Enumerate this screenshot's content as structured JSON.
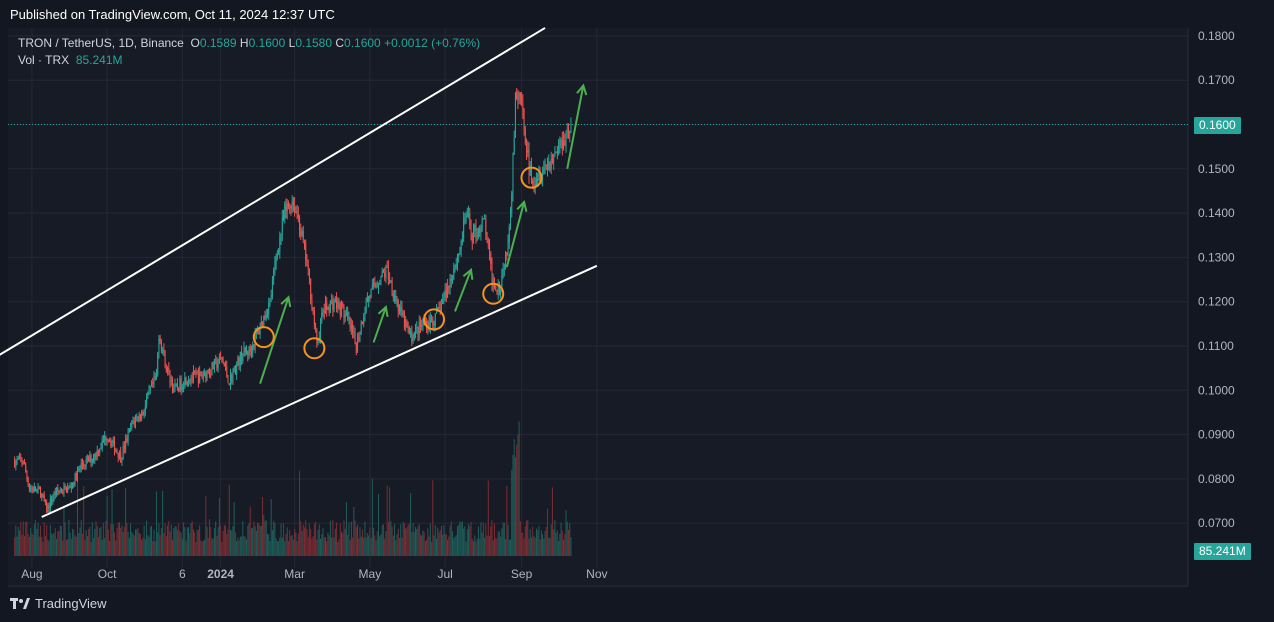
{
  "header": {
    "published": "Published on TradingView.com, Oct 11, 2024 12:37 UTC"
  },
  "legend": {
    "symbol": "TRON / TetherUS, 1D, Binance",
    "o_label": "O",
    "o_value": "0.1589",
    "h_label": "H",
    "h_value": "0.1600",
    "l_label": "L",
    "l_value": "0.1580",
    "c_label": "C",
    "c_value": "0.1600",
    "change": "+0.0012 (+0.76%)",
    "vol_label": "Vol · TRX",
    "vol_value": "85.241M"
  },
  "footer": {
    "brand": "TradingView"
  },
  "colors": {
    "up": "#26a69a",
    "down": "#ef5350",
    "channel": "#ffffff",
    "arrow": "#4caf50",
    "circle": "#f7931a",
    "bg": "#171b26"
  },
  "chart_data": {
    "type": "candlestick",
    "symbol": "TRX/USDT",
    "interval": "1D",
    "y_ticks": [
      "0.1800",
      "0.1700",
      "0.1600",
      "0.1500",
      "0.1400",
      "0.1300",
      "0.1200",
      "0.1100",
      "0.1000",
      "0.0900",
      "0.0800",
      "0.0700"
    ],
    "ylim": [
      0.0672,
      0.1825
    ],
    "x_ticks": [
      "Aug",
      "Oct",
      "6",
      "2024",
      "Mar",
      "May",
      "Jul",
      "Sep",
      "Nov"
    ],
    "last_price": "0.1600",
    "last_volume": "85.241M",
    "path": [
      [
        "2023-07-25",
        0.084
      ],
      [
        "2023-07-30",
        0.078
      ],
      [
        "2023-08-08",
        0.077
      ],
      [
        "2023-08-13",
        0.073
      ],
      [
        "2023-08-20",
        0.077
      ],
      [
        "2023-09-01",
        0.078
      ],
      [
        "2023-09-10",
        0.083
      ],
      [
        "2023-09-20",
        0.085
      ],
      [
        "2023-10-01",
        0.09
      ],
      [
        "2023-10-05",
        0.088
      ],
      [
        "2023-10-12",
        0.085
      ],
      [
        "2023-10-22",
        0.093
      ],
      [
        "2023-10-30",
        0.095
      ],
      [
        "2023-11-05",
        0.1
      ],
      [
        "2023-11-10",
        0.103
      ],
      [
        "2023-11-12",
        0.113
      ],
      [
        "2023-11-18",
        0.105
      ],
      [
        "2023-11-25",
        0.1
      ],
      [
        "2023-12-05",
        0.103
      ],
      [
        "2023-12-15",
        0.103
      ],
      [
        "2023-12-25",
        0.105
      ],
      [
        "2024-01-02",
        0.107
      ],
      [
        "2024-01-08",
        0.102
      ],
      [
        "2024-01-18",
        0.108
      ],
      [
        "2024-01-25",
        0.109
      ],
      [
        "2024-02-03",
        0.115
      ],
      [
        "2024-02-10",
        0.12
      ],
      [
        "2024-02-15",
        0.13
      ],
      [
        "2024-02-22",
        0.14
      ],
      [
        "2024-02-28",
        0.143
      ],
      [
        "2024-03-04",
        0.139
      ],
      [
        "2024-03-10",
        0.13
      ],
      [
        "2024-03-15",
        0.12
      ],
      [
        "2024-03-19",
        0.11
      ],
      [
        "2024-03-24",
        0.118
      ],
      [
        "2024-04-02",
        0.12
      ],
      [
        "2024-04-09",
        0.118
      ],
      [
        "2024-04-14",
        0.115
      ],
      [
        "2024-04-20",
        0.11
      ],
      [
        "2024-04-28",
        0.12
      ],
      [
        "2024-05-08",
        0.125
      ],
      [
        "2024-05-15",
        0.127
      ],
      [
        "2024-05-25",
        0.118
      ],
      [
        "2024-06-03",
        0.112
      ],
      [
        "2024-06-13",
        0.115
      ],
      [
        "2024-06-23",
        0.116
      ],
      [
        "2024-07-03",
        0.123
      ],
      [
        "2024-07-13",
        0.132
      ],
      [
        "2024-07-18",
        0.14
      ],
      [
        "2024-07-23",
        0.135
      ],
      [
        "2024-08-02",
        0.138
      ],
      [
        "2024-08-08",
        0.125
      ],
      [
        "2024-08-14",
        0.123
      ],
      [
        "2024-08-20",
        0.132
      ],
      [
        "2024-08-24",
        0.145
      ],
      [
        "2024-08-27",
        0.165
      ],
      [
        "2024-08-31",
        0.166
      ],
      [
        "2024-09-03",
        0.16
      ],
      [
        "2024-09-07",
        0.15
      ],
      [
        "2024-09-11",
        0.148
      ],
      [
        "2024-09-18",
        0.15
      ],
      [
        "2024-09-25",
        0.152
      ],
      [
        "2024-10-03",
        0.156
      ],
      [
        "2024-10-11",
        0.16
      ]
    ],
    "volume_range": [
      25,
      180
    ],
    "channel": {
      "upper": [
        [
          "2023-07-01",
          0.1072
        ],
        [
          "2024-09-20",
          0.1818
        ]
      ],
      "lower": [
        [
          "2023-08-09",
          0.0714
        ],
        [
          "2024-11-01",
          0.1281
        ]
      ]
    },
    "arrows": [
      [
        [
          "2024-02-02",
          0.1015
        ],
        [
          "2024-02-25",
          0.121
        ]
      ],
      [
        [
          "2024-05-04",
          0.1108
        ],
        [
          "2024-05-14",
          0.1188
        ]
      ],
      [
        [
          "2024-07-09",
          0.1178
        ],
        [
          "2024-07-22",
          0.1272
        ]
      ],
      [
        [
          "2024-08-20",
          0.1278
        ],
        [
          "2024-09-03",
          0.1425
        ]
      ],
      [
        [
          "2024-10-08",
          0.15
        ],
        [
          "2024-10-21",
          0.1688
        ]
      ]
    ],
    "circles": [
      [
        "2024-02-05",
        0.112
      ],
      [
        "2024-03-17",
        0.1095
      ],
      [
        "2024-06-22",
        0.116
      ],
      [
        "2024-08-09",
        0.1218
      ],
      [
        "2024-09-09",
        0.148
      ]
    ]
  }
}
